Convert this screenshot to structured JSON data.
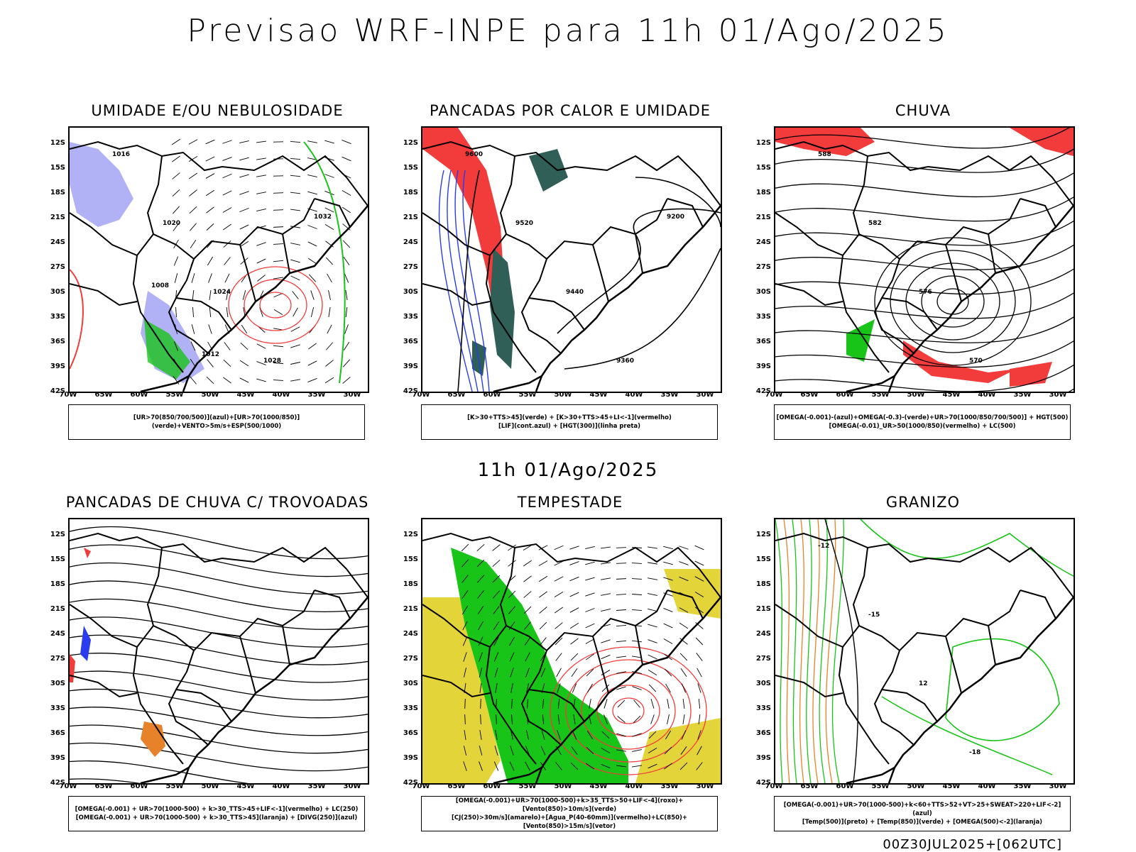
{
  "title": "Previsao WRF-INPE  para 11h 01/Ago/2025",
  "subtitle": "11h 01/Ago/2025",
  "footer": "00Z30JUL2025+[062UTC]",
  "lat_labels": [
    "12S",
    "15S",
    "18S",
    "21S",
    "24S",
    "27S",
    "30S",
    "33S",
    "36S",
    "39S",
    "42S"
  ],
  "lon_labels": [
    "70W",
    "65W",
    "60W",
    "55W",
    "50W",
    "45W",
    "40W",
    "35W",
    "30W"
  ],
  "panels": [
    {
      "title": "UMIDADE E/OU NEBULOSIDADE",
      "legend": [
        "[UR>70(850/700/500)](azul)+[UR>70(1000/850)](verde)+VENTO>5m/s+ESP(500/1000)"
      ],
      "labels": [
        "1016",
        "1020",
        "1024",
        "1028",
        "1032",
        "1008",
        "1012"
      ]
    },
    {
      "title": "PANCADAS POR CALOR E UMIDADE",
      "legend": [
        "[K>30+TTS>45](verde) + [K>30+TTS>45+LI<-1](vermelho)",
        "[LIF](cont.azul) + [HGT(300)](linha preta)"
      ],
      "labels": [
        "9600",
        "9520",
        "9440",
        "9360",
        "9200"
      ]
    },
    {
      "title": "CHUVA",
      "legend": [
        "[OMEGA(-0.001)-(azul)+OMEGA(-0.3)-(verde)+UR>70(1000/850/700/500)] + HGT(500)",
        "[OMEGA(-0.01)_UR>50(1000/850)(vermelho) + LC(500)"
      ],
      "labels": [
        "588",
        "582",
        "576",
        "570"
      ]
    },
    {
      "title": "PANCADAS DE CHUVA C/ TROVOADAS",
      "legend": [
        "[OMEGA(-0.001) + UR>70(1000-500) + k>30_TTS>45+LIF<-1](vermelho) + LC(250)",
        "[OMEGA(-0.001) + UR>70(1000-500) + k>30_TTS>45](laranja) + [DIVG(250)](azul)"
      ],
      "labels": []
    },
    {
      "title": "TEMPESTADE",
      "legend": [
        "[OMEGA(-0.001)+UR>70(1000-500)+k>35_TTS>50+LIF<-4](roxo)+[Vento(850)>10m/s](verde)",
        "[CJ(250)>30m/s](amarelo)+[Agua_P(40-60mm)](vermelho)+LC(850)+[Vento(850)>15m/s](vetor)"
      ],
      "labels": []
    },
    {
      "title": "GRANIZO",
      "legend": [
        "[OMEGA(-0.001)+UR>70(1000-500)+k<60+TTS>52+VT>25+SWEAT>220+LIF<-2](azul)",
        "[Temp(500)](preto) + [Temp(850)](verde) + [OMEGA(500)<-2](laranja)"
      ],
      "labels": [
        "-12",
        "-15",
        "12",
        "-18"
      ]
    }
  ],
  "colors": {
    "red": "#f23b3b",
    "green": "#19c419",
    "blue": "#2a3bf0",
    "lavender": "#a9a9f5",
    "teal": "#2f5f57",
    "yellow": "#e3d43a",
    "orange": "#e8822a"
  }
}
